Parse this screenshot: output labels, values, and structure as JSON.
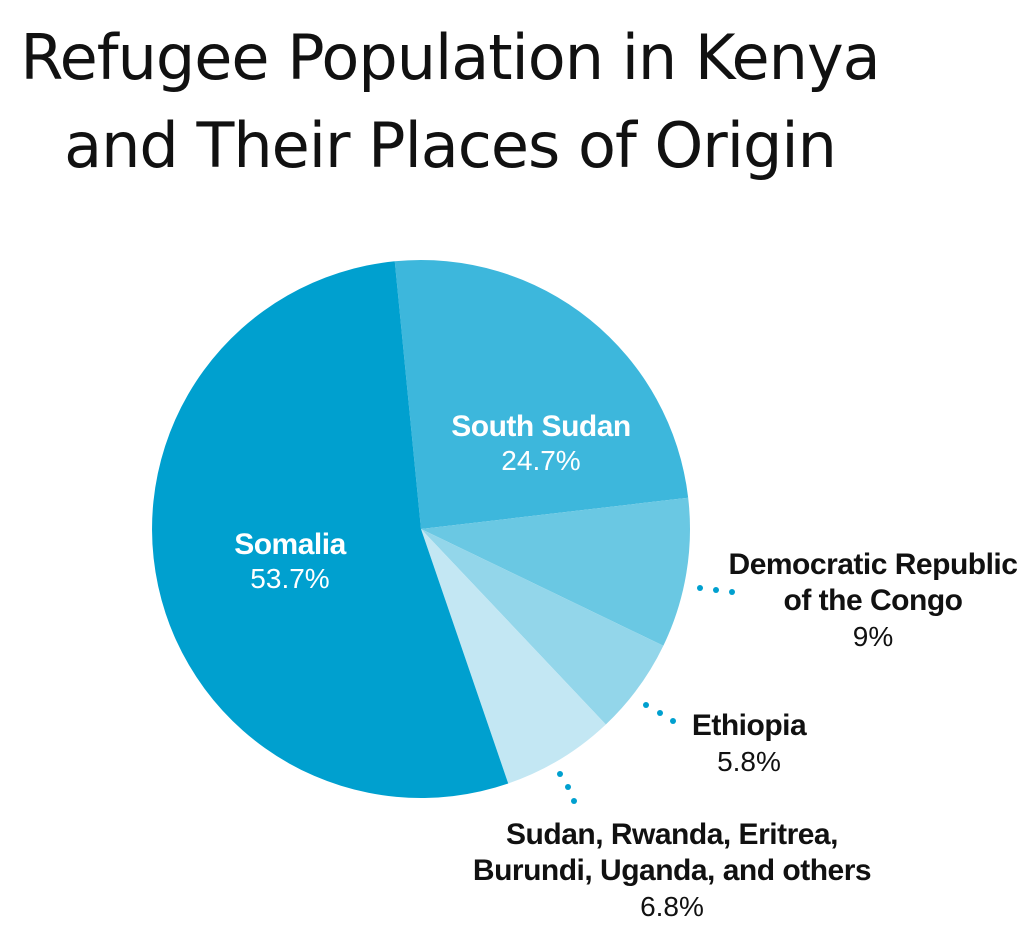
{
  "header": {
    "title_line1": "Refugee Population in Kenya",
    "title_line2": "and Their Places of Origin"
  },
  "chart_data": {
    "type": "pie",
    "title": "Refugee Population in Kenya and Their Places of Origin",
    "slices": [
      {
        "label_lines": [
          "South Sudan"
        ],
        "value": 24.7,
        "value_label": "24.7%",
        "color": "#3db7dc"
      },
      {
        "label_lines": [
          "Democratic Republic",
          "of the Congo"
        ],
        "value": 9,
        "value_label": "9%",
        "color": "#6ac8e3"
      },
      {
        "label_lines": [
          "Ethiopia"
        ],
        "value": 5.8,
        "value_label": "5.8%",
        "color": "#93d6ea"
      },
      {
        "label_lines": [
          "Sudan, Rwanda, Eritrea,",
          "Burundi, Uganda, and others"
        ],
        "value": 6.8,
        "value_label": "6.8%",
        "color": "#c3e7f3"
      },
      {
        "label_lines": [
          "Somalia"
        ],
        "value": 53.7,
        "value_label": "53.7%",
        "color": "#00a0cf"
      }
    ],
    "label_color_inside": "#ffffff",
    "label_color_outside": "#111111",
    "leader_color": "#00a0cf"
  }
}
